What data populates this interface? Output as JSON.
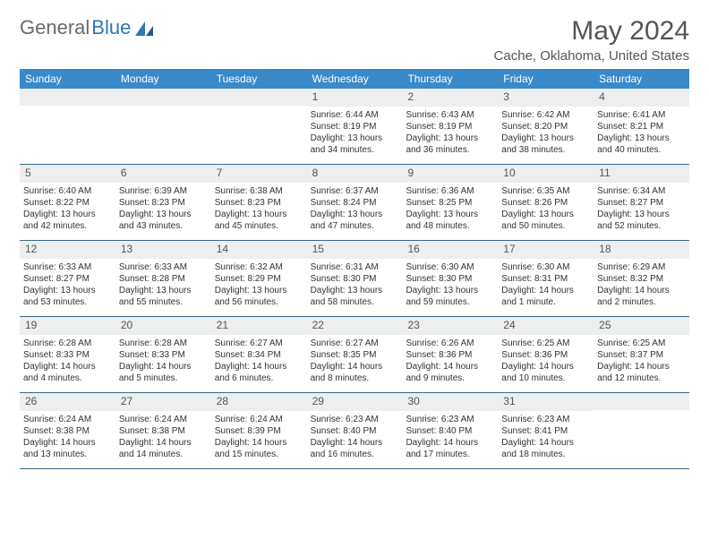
{
  "brand": {
    "part1": "General",
    "part2": "Blue"
  },
  "title": "May 2024",
  "location": "Cache, Oklahoma, United States",
  "colors": {
    "header_bg": "#3a89c9",
    "header_text": "#ffffff",
    "daynum_bg": "#eceeef",
    "border": "#3a6a8a",
    "text": "#333333",
    "title": "#555555",
    "brand_gray": "#6a6a6a",
    "brand_blue": "#2d77b5"
  },
  "day_names": [
    "Sunday",
    "Monday",
    "Tuesday",
    "Wednesday",
    "Thursday",
    "Friday",
    "Saturday"
  ],
  "weeks": [
    [
      null,
      null,
      null,
      {
        "n": "1",
        "sr": "Sunrise: 6:44 AM",
        "ss": "Sunset: 8:19 PM",
        "dl": "Daylight: 13 hours and 34 minutes."
      },
      {
        "n": "2",
        "sr": "Sunrise: 6:43 AM",
        "ss": "Sunset: 8:19 PM",
        "dl": "Daylight: 13 hours and 36 minutes."
      },
      {
        "n": "3",
        "sr": "Sunrise: 6:42 AM",
        "ss": "Sunset: 8:20 PM",
        "dl": "Daylight: 13 hours and 38 minutes."
      },
      {
        "n": "4",
        "sr": "Sunrise: 6:41 AM",
        "ss": "Sunset: 8:21 PM",
        "dl": "Daylight: 13 hours and 40 minutes."
      }
    ],
    [
      {
        "n": "5",
        "sr": "Sunrise: 6:40 AM",
        "ss": "Sunset: 8:22 PM",
        "dl": "Daylight: 13 hours and 42 minutes."
      },
      {
        "n": "6",
        "sr": "Sunrise: 6:39 AM",
        "ss": "Sunset: 8:23 PM",
        "dl": "Daylight: 13 hours and 43 minutes."
      },
      {
        "n": "7",
        "sr": "Sunrise: 6:38 AM",
        "ss": "Sunset: 8:23 PM",
        "dl": "Daylight: 13 hours and 45 minutes."
      },
      {
        "n": "8",
        "sr": "Sunrise: 6:37 AM",
        "ss": "Sunset: 8:24 PM",
        "dl": "Daylight: 13 hours and 47 minutes."
      },
      {
        "n": "9",
        "sr": "Sunrise: 6:36 AM",
        "ss": "Sunset: 8:25 PM",
        "dl": "Daylight: 13 hours and 48 minutes."
      },
      {
        "n": "10",
        "sr": "Sunrise: 6:35 AM",
        "ss": "Sunset: 8:26 PM",
        "dl": "Daylight: 13 hours and 50 minutes."
      },
      {
        "n": "11",
        "sr": "Sunrise: 6:34 AM",
        "ss": "Sunset: 8:27 PM",
        "dl": "Daylight: 13 hours and 52 minutes."
      }
    ],
    [
      {
        "n": "12",
        "sr": "Sunrise: 6:33 AM",
        "ss": "Sunset: 8:27 PM",
        "dl": "Daylight: 13 hours and 53 minutes."
      },
      {
        "n": "13",
        "sr": "Sunrise: 6:33 AM",
        "ss": "Sunset: 8:28 PM",
        "dl": "Daylight: 13 hours and 55 minutes."
      },
      {
        "n": "14",
        "sr": "Sunrise: 6:32 AM",
        "ss": "Sunset: 8:29 PM",
        "dl": "Daylight: 13 hours and 56 minutes."
      },
      {
        "n": "15",
        "sr": "Sunrise: 6:31 AM",
        "ss": "Sunset: 8:30 PM",
        "dl": "Daylight: 13 hours and 58 minutes."
      },
      {
        "n": "16",
        "sr": "Sunrise: 6:30 AM",
        "ss": "Sunset: 8:30 PM",
        "dl": "Daylight: 13 hours and 59 minutes."
      },
      {
        "n": "17",
        "sr": "Sunrise: 6:30 AM",
        "ss": "Sunset: 8:31 PM",
        "dl": "Daylight: 14 hours and 1 minute."
      },
      {
        "n": "18",
        "sr": "Sunrise: 6:29 AM",
        "ss": "Sunset: 8:32 PM",
        "dl": "Daylight: 14 hours and 2 minutes."
      }
    ],
    [
      {
        "n": "19",
        "sr": "Sunrise: 6:28 AM",
        "ss": "Sunset: 8:33 PM",
        "dl": "Daylight: 14 hours and 4 minutes."
      },
      {
        "n": "20",
        "sr": "Sunrise: 6:28 AM",
        "ss": "Sunset: 8:33 PM",
        "dl": "Daylight: 14 hours and 5 minutes."
      },
      {
        "n": "21",
        "sr": "Sunrise: 6:27 AM",
        "ss": "Sunset: 8:34 PM",
        "dl": "Daylight: 14 hours and 6 minutes."
      },
      {
        "n": "22",
        "sr": "Sunrise: 6:27 AM",
        "ss": "Sunset: 8:35 PM",
        "dl": "Daylight: 14 hours and 8 minutes."
      },
      {
        "n": "23",
        "sr": "Sunrise: 6:26 AM",
        "ss": "Sunset: 8:36 PM",
        "dl": "Daylight: 14 hours and 9 minutes."
      },
      {
        "n": "24",
        "sr": "Sunrise: 6:25 AM",
        "ss": "Sunset: 8:36 PM",
        "dl": "Daylight: 14 hours and 10 minutes."
      },
      {
        "n": "25",
        "sr": "Sunrise: 6:25 AM",
        "ss": "Sunset: 8:37 PM",
        "dl": "Daylight: 14 hours and 12 minutes."
      }
    ],
    [
      {
        "n": "26",
        "sr": "Sunrise: 6:24 AM",
        "ss": "Sunset: 8:38 PM",
        "dl": "Daylight: 14 hours and 13 minutes."
      },
      {
        "n": "27",
        "sr": "Sunrise: 6:24 AM",
        "ss": "Sunset: 8:38 PM",
        "dl": "Daylight: 14 hours and 14 minutes."
      },
      {
        "n": "28",
        "sr": "Sunrise: 6:24 AM",
        "ss": "Sunset: 8:39 PM",
        "dl": "Daylight: 14 hours and 15 minutes."
      },
      {
        "n": "29",
        "sr": "Sunrise: 6:23 AM",
        "ss": "Sunset: 8:40 PM",
        "dl": "Daylight: 14 hours and 16 minutes."
      },
      {
        "n": "30",
        "sr": "Sunrise: 6:23 AM",
        "ss": "Sunset: 8:40 PM",
        "dl": "Daylight: 14 hours and 17 minutes."
      },
      {
        "n": "31",
        "sr": "Sunrise: 6:23 AM",
        "ss": "Sunset: 8:41 PM",
        "dl": "Daylight: 14 hours and 18 minutes."
      },
      null
    ]
  ]
}
